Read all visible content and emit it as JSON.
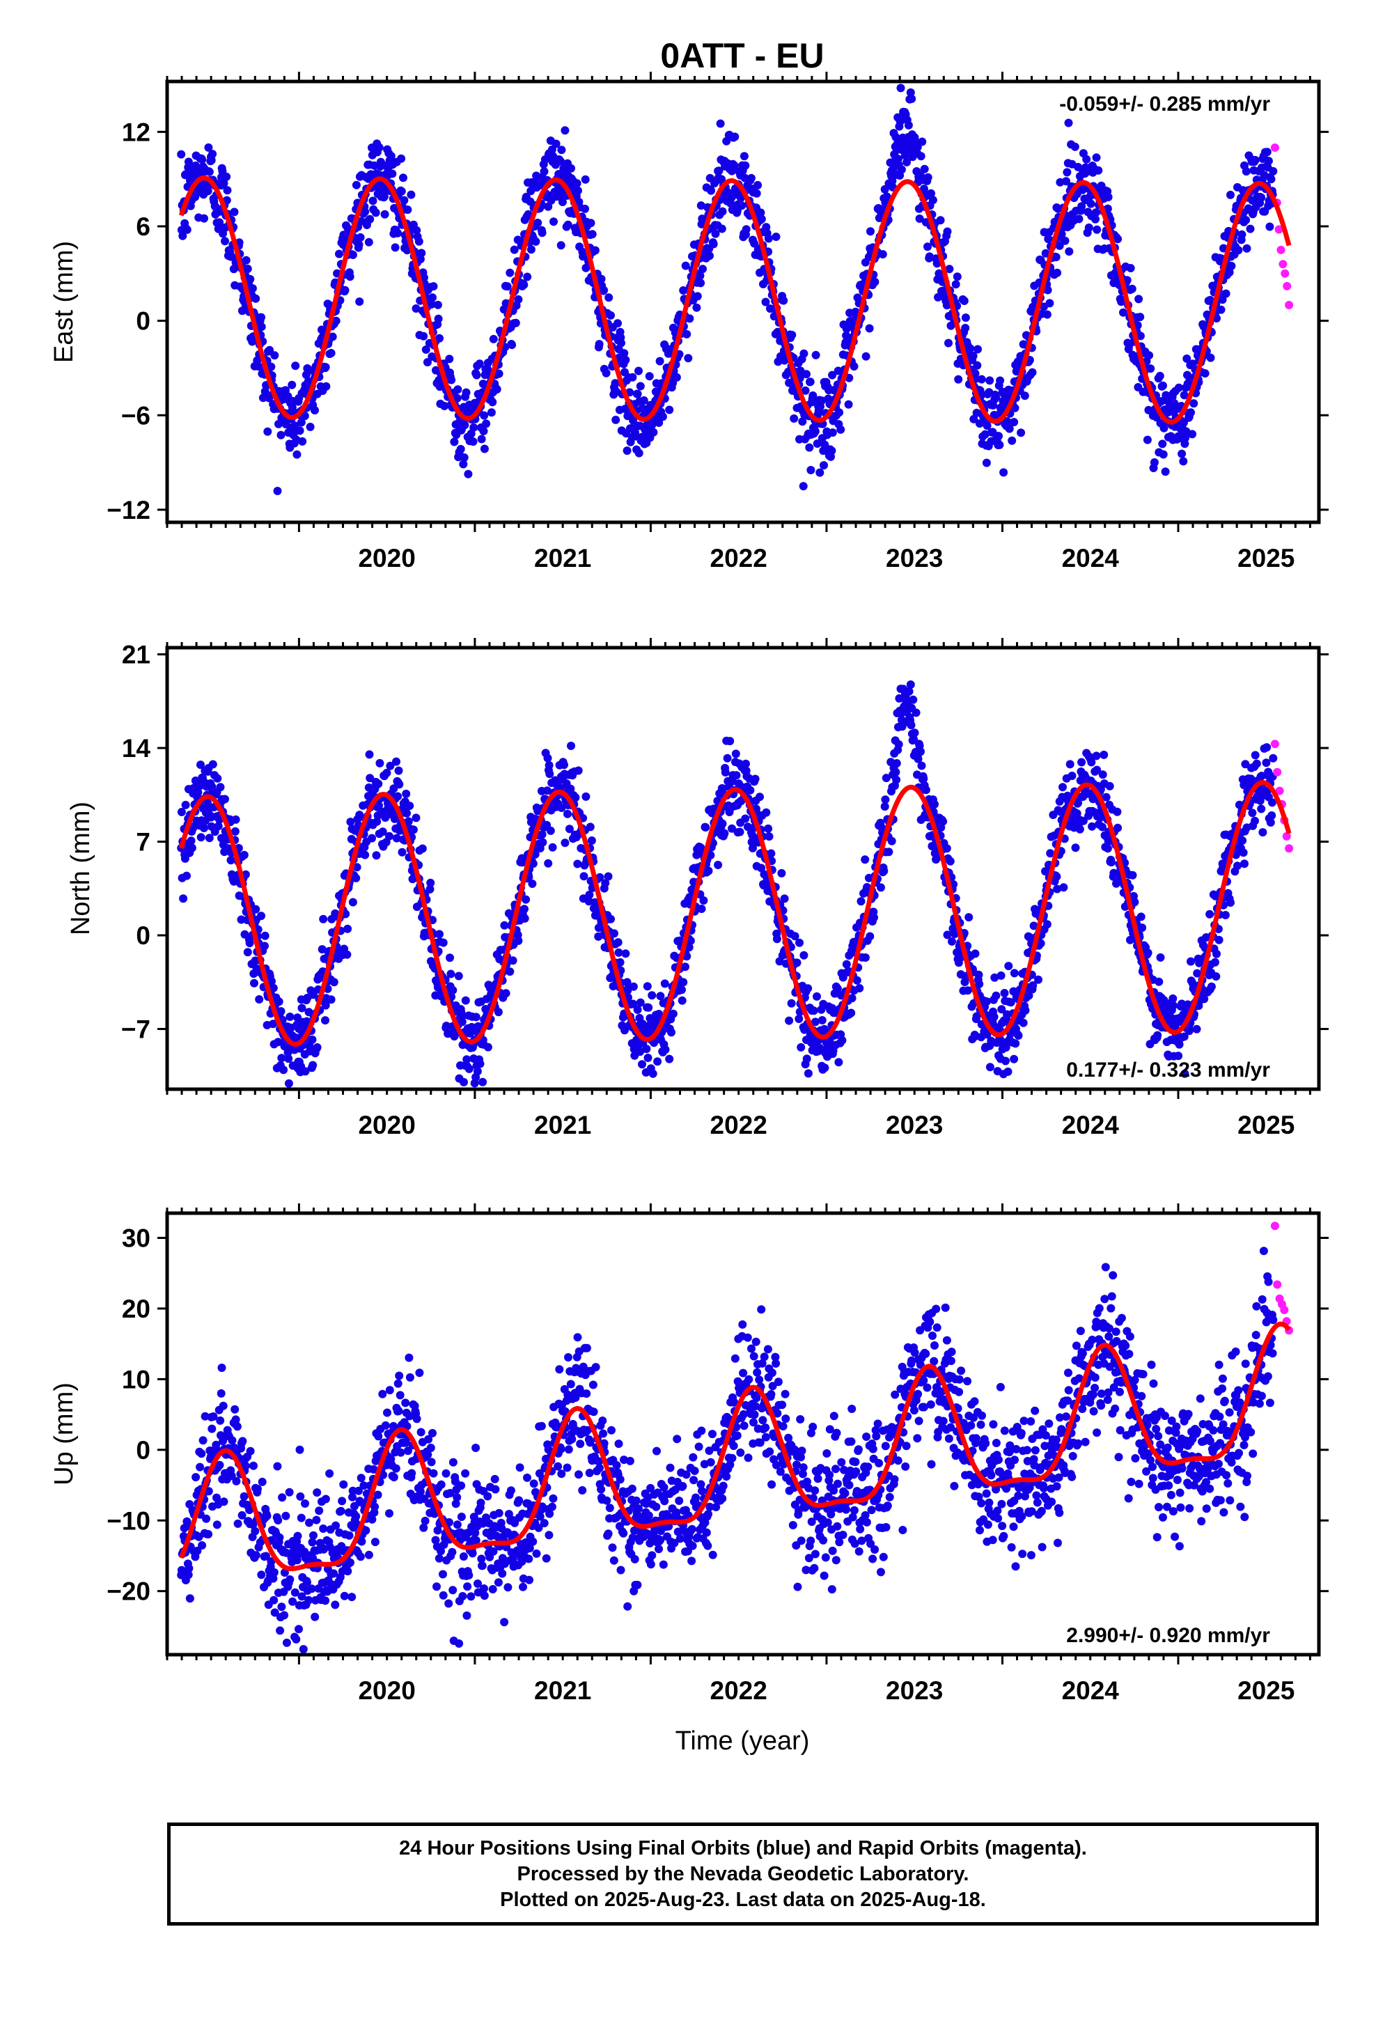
{
  "title": "0ATT - EU",
  "colors": {
    "final": "#1400e6",
    "rapid": "#ff1aff",
    "model": "#ff0000",
    "frame": "#000000"
  },
  "xaxis": {
    "label": "Time (year)",
    "range": [
      2019.25,
      2025.8
    ],
    "ticks": [
      2020,
      2021,
      2022,
      2023,
      2024,
      2025
    ],
    "tick_labels": [
      "2020",
      "2021",
      "2022",
      "2023",
      "2024",
      "2025"
    ]
  },
  "chart_data": [
    {
      "type": "scatter",
      "panel": "east",
      "ylabel": "East (mm)",
      "ylim": [
        -12.8,
        15.2
      ],
      "yticks": [
        -12,
        -6,
        0,
        6,
        12
      ],
      "ytick_labels": [
        "−12",
        "−6",
        "0",
        "6",
        "12"
      ],
      "rate_text": "-0.059+/- 0.285 mm/yr",
      "rate_position": "top-right",
      "model": {
        "offset": 1.3,
        "trend": -0.059,
        "annual_amp": 7.6,
        "annual_peak": 0.46,
        "semi_amp": 0.0,
        "semi_peak": 0.0
      },
      "scatter_sd": 1.4,
      "anomalies": [
        {
          "x": 2023.45,
          "width": 0.08,
          "height": 3.5
        }
      ],
      "series": [
        {
          "name": "Final Orbits",
          "color": "#1400e6",
          "x_range": [
            2019.33,
            2025.54
          ],
          "n_points": 2200
        },
        {
          "name": "Rapid Orbits",
          "color": "#ff1aff",
          "x_range": [
            2025.55,
            2025.63
          ],
          "values_sample": [
            11.0,
            7.5,
            5.8,
            4.5,
            3.6,
            3.0,
            2.2,
            1.0
          ]
        },
        {
          "name": "Model",
          "color": "#ff0000",
          "x_range": [
            2019.33,
            2025.63
          ]
        }
      ]
    },
    {
      "type": "scatter",
      "panel": "north",
      "ylabel": "North (mm)",
      "ylim": [
        -11.5,
        21.5
      ],
      "yticks": [
        -7,
        0,
        7,
        14,
        21
      ],
      "ytick_labels": [
        "−7",
        "0",
        "7",
        "14",
        "21"
      ],
      "rate_text": "0.177+/- 0.323 mm/yr",
      "rate_position": "bottom-right",
      "model": {
        "offset": 1.6,
        "trend": 0.177,
        "annual_amp": 9.3,
        "annual_peak": 0.48,
        "semi_amp": 0.0,
        "semi_peak": 0.0
      },
      "scatter_sd": 1.6,
      "anomalies": [
        {
          "x": 2023.45,
          "width": 0.07,
          "height": 6.5
        }
      ],
      "series": [
        {
          "name": "Final Orbits",
          "color": "#1400e6",
          "x_range": [
            2019.33,
            2025.54
          ],
          "n_points": 2200
        },
        {
          "name": "Rapid Orbits",
          "color": "#ff1aff",
          "x_range": [
            2025.55,
            2025.63
          ],
          "values_sample": [
            14.3,
            12.2,
            10.8,
            9.8,
            8.6,
            7.4,
            6.5
          ]
        },
        {
          "name": "Model",
          "color": "#ff0000",
          "x_range": [
            2019.33,
            2025.63
          ]
        }
      ]
    },
    {
      "type": "scatter",
      "panel": "up",
      "ylabel": "Up (mm)",
      "ylim": [
        -29,
        33.5
      ],
      "yticks": [
        -20,
        -10,
        0,
        10,
        20,
        30
      ],
      "ytick_labels": [
        "−20",
        "−10",
        "0",
        "10",
        "20",
        "30"
      ],
      "rate_text": "2.990+/- 0.920 mm/yr",
      "rate_position": "bottom-right",
      "model": {
        "offset": -3.0,
        "trend": 2.99,
        "annual_amp": 8.8,
        "annual_peak": 0.58,
        "semi_amp": 2.8,
        "semi_peak": 0.08
      },
      "scatter_sd": 4.6,
      "anomalies": [],
      "series": [
        {
          "name": "Final Orbits",
          "color": "#1400e6",
          "x_range": [
            2019.33,
            2025.54
          ],
          "n_points": 2100
        },
        {
          "name": "Rapid Orbits",
          "color": "#ff1aff",
          "x_range": [
            2025.55,
            2025.63
          ],
          "values_sample": [
            31.7,
            23.4,
            21.4,
            20.6,
            19.8,
            18.2,
            16.9
          ]
        },
        {
          "name": "Model",
          "color": "#ff0000",
          "x_range": [
            2019.33,
            2025.63
          ]
        }
      ]
    }
  ],
  "caption": {
    "line1": "24 Hour Positions Using Final Orbits (blue) and Rapid Orbits (magenta).",
    "line2": "Processed by the Nevada Geodetic Laboratory.",
    "line3": "Plotted on 2025-Aug-23. Last data on 2025-Aug-18."
  }
}
